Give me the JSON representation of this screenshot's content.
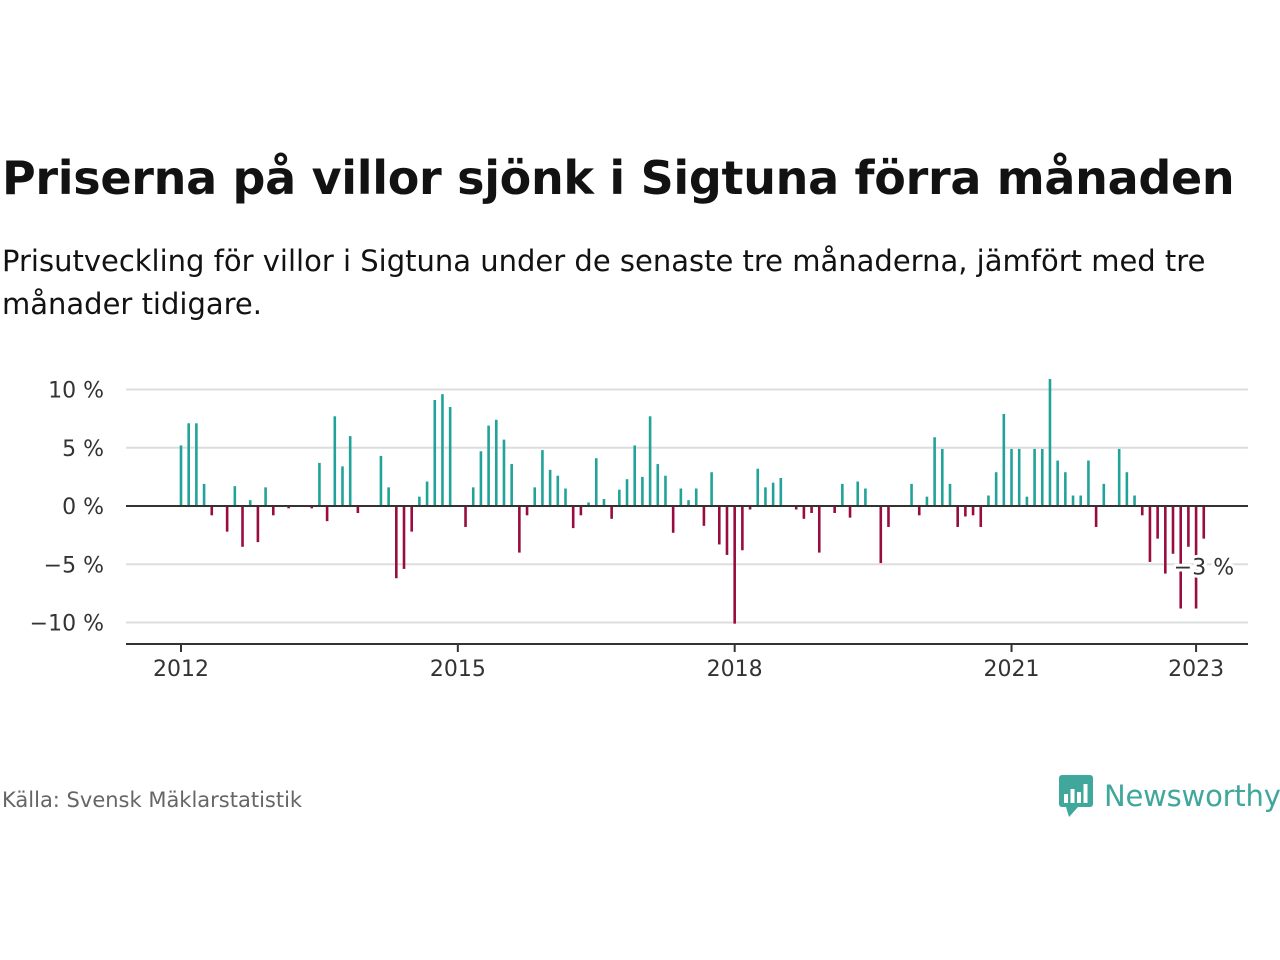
{
  "header": {
    "title": "Priserna på villor sjönk i Sigtuna förra månaden",
    "subtitle": "Prisutveckling för villor i Sigtuna under de senaste tre månaderna, jämfört med tre månader tidigare."
  },
  "footer": {
    "source": "Källa: Svensk Mäklarstatistik",
    "brand": "Newsworthy",
    "brand_icon": "bar-chart-speech-bubble-icon"
  },
  "colors": {
    "positive": "#21a39a",
    "negative": "#980c3f",
    "grid": "#dddddd",
    "zero_line": "#333333",
    "brand": "#3fa79b"
  },
  "chart_data": {
    "type": "bar",
    "title": "Priserna på villor sjönk i Sigtuna förra månaden",
    "ylim": [
      -12,
      12
    ],
    "yticks": [
      {
        "value": 10,
        "label": "10 %"
      },
      {
        "value": 5,
        "label": "5 %"
      },
      {
        "value": 0,
        "label": "0 %"
      },
      {
        "value": -5,
        "label": "−5 %"
      },
      {
        "value": -10,
        "label": "−10 %"
      }
    ],
    "xticks": [
      {
        "date": "2012-01",
        "label": "2012"
      },
      {
        "date": "2015-01",
        "label": "2015"
      },
      {
        "date": "2018-01",
        "label": "2018"
      },
      {
        "date": "2021-01",
        "label": "2021"
      },
      {
        "date": "2023-01",
        "label": "2023"
      }
    ],
    "grid": true,
    "legend": "none",
    "start_month": "2012-01",
    "values": [
      5.2,
      7.1,
      7.1,
      1.9,
      -0.8,
      0,
      -2.2,
      1.7,
      -3.5,
      0.5,
      -3.1,
      1.6,
      -0.8,
      0,
      -0.2,
      0,
      0,
      -0.2,
      3.7,
      -1.3,
      7.7,
      3.4,
      6.0,
      -0.6,
      0,
      0,
      4.3,
      1.6,
      -6.2,
      -5.4,
      -2.2,
      0.8,
      2.1,
      9.1,
      9.6,
      8.5,
      0,
      -1.8,
      1.6,
      4.7,
      6.9,
      7.4,
      5.7,
      3.6,
      -4.0,
      -0.8,
      1.6,
      4.8,
      3.1,
      2.6,
      1.5,
      -1.9,
      -0.8,
      0.3,
      4.1,
      0.6,
      -1.1,
      1.4,
      2.3,
      5.2,
      2.5,
      7.7,
      3.6,
      2.6,
      -2.3,
      1.5,
      0.5,
      1.5,
      -1.7,
      2.9,
      -3.3,
      -4.2,
      -10.1,
      -3.8,
      -0.3,
      3.2,
      1.6,
      2.0,
      2.4,
      0,
      -0.3,
      -1.1,
      -0.6,
      -4.0,
      0,
      -0.6,
      1.9,
      -1.0,
      2.1,
      1.5,
      0,
      -4.9,
      -1.8,
      0,
      0,
      1.9,
      -0.8,
      0.8,
      5.9,
      4.9,
      1.9,
      -1.8,
      -0.9,
      -0.8,
      -1.8,
      0.9,
      2.9,
      7.9,
      4.9,
      4.9,
      0.8,
      4.9,
      4.9,
      10.9,
      3.9,
      2.9,
      0.9,
      0.9,
      3.9,
      -1.8,
      1.9,
      0,
      4.9,
      2.9,
      0.9,
      -0.8,
      -4.8,
      -2.8,
      -5.8,
      -4.1,
      -8.8,
      -3.5,
      -8.8,
      -2.8
    ],
    "annotation": {
      "label": "−3 %"
    }
  }
}
